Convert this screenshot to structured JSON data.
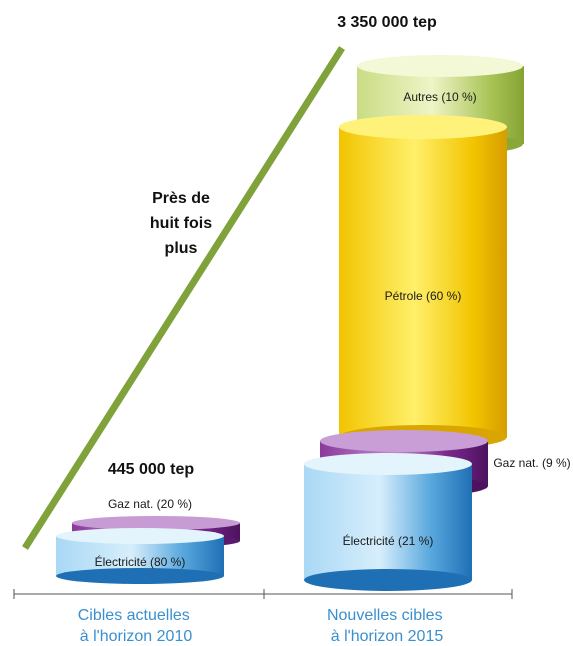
{
  "chart_data": {
    "type": "bar",
    "categories": [
      "Cibles actuelles\nà l'horizon 2010",
      "Nouvelles cibles\nà l'horizon 2015"
    ],
    "totals": [
      "445 000 tep",
      "3 350 000 tep"
    ],
    "total_values": [
      445000,
      3350000
    ],
    "series": [
      {
        "name": "Électricité",
        "values": [
          80,
          21
        ],
        "labels": [
          "Électricité (80 %)",
          "Électricité (21 %)"
        ]
      },
      {
        "name": "Gaz nat.",
        "values": [
          20,
          9
        ],
        "labels": [
          "Gaz nat. (20 %)",
          "Gaz nat. (9 %)"
        ]
      },
      {
        "name": "Pétrole",
        "values": [
          0,
          60
        ],
        "labels": [
          "",
          "Pétrole (60 %)"
        ]
      },
      {
        "name": "Autres",
        "values": [
          0,
          10
        ],
        "labels": [
          "",
          "Autres (10 %)"
        ]
      }
    ],
    "annotations": [
      "Près de",
      "huit fois",
      "plus"
    ],
    "colors": {
      "electricite": "#5aa9de",
      "gaz": "#7b2a8c",
      "petrole": "#f2c400",
      "autres": "#b8cf63",
      "arrow": "#7fa23a",
      "category_text": "#3a8fcf"
    }
  }
}
